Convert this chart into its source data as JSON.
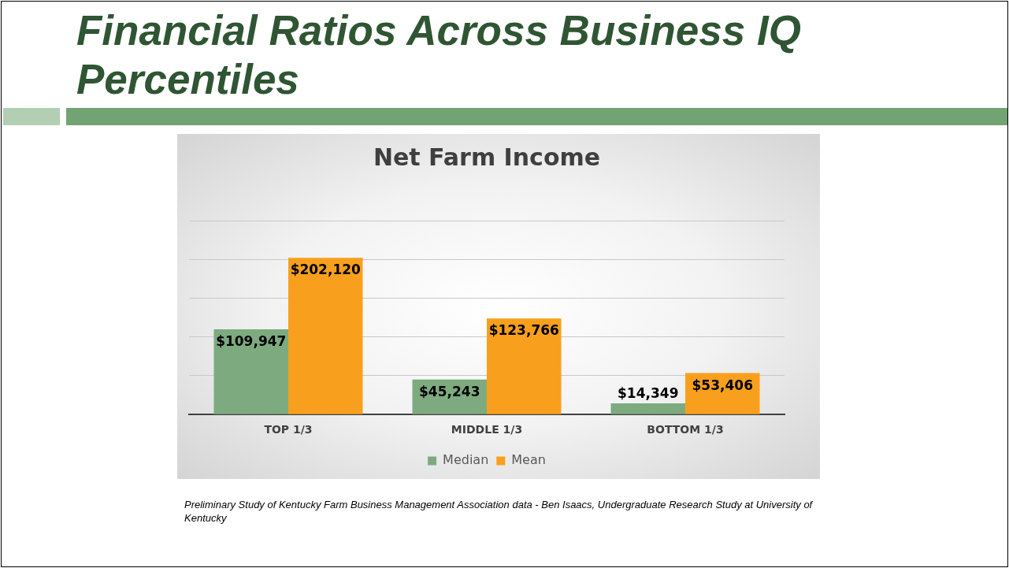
{
  "chart_data": {
    "type": "bar",
    "title": "Financial Ratios Across Business IQ Percentiles",
    "subtitle": "Net Farm Income",
    "categories": [
      "TOP 1/3",
      "MIDDLE 1/3",
      "BOTTOM 1/3"
    ],
    "series": [
      {
        "name": "Median",
        "color": "#7dab7f",
        "values": [
          109947,
          45243,
          14349
        ],
        "value_labels": [
          "$109,947",
          "$45,243",
          "$14,349"
        ]
      },
      {
        "name": "Mean",
        "color": "#f8a01d",
        "values": [
          202120,
          123766,
          53406
        ],
        "value_labels": [
          "$202,120",
          "$123,766",
          "$53,406"
        ]
      }
    ],
    "tick_labels": "x",
    "grid": "y",
    "legend": "bottom",
    "annotations": [
      "Preliminary Study of Kentucky Farm Business Management Association data - Ben Isaacs, Undergraduate Research Study at University of Kentucky"
    ]
  }
}
